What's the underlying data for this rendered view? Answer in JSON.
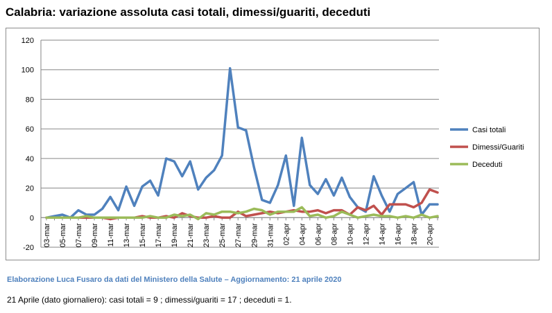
{
  "header": {
    "title": "Calabria: variazione assoluta casi totali, dimessi/guariti, deceduti"
  },
  "footer": {
    "credit": "Elaborazione  Luca Fusaro da dati del Ministero della Salute – Aggiornamento: 21 aprile 2020",
    "note": "21 Aprile (dato giornaliero): casi totali = 9 ; dimessi/guariti = 17 ; deceduti = 1."
  },
  "colors": {
    "casi": "#4f81bd",
    "dimessi": "#c0504d",
    "deceduti": "#9bbb59",
    "grid": "#868686"
  },
  "chart_data": {
    "type": "line",
    "title": "Calabria: variazione assoluta casi totali, dimessi/guariti, deceduti",
    "xlabel": "",
    "ylabel": "",
    "ylim": [
      -20,
      120
    ],
    "yticks": [
      -20,
      0,
      20,
      40,
      60,
      80,
      100,
      120
    ],
    "grid": "horizontal",
    "legend": "right",
    "categories": [
      "03-mar",
      "04-mar",
      "05-mar",
      "06-mar",
      "07-mar",
      "08-mar",
      "09-mar",
      "10-mar",
      "11-mar",
      "12-mar",
      "13-mar",
      "14-mar",
      "15-mar",
      "16-mar",
      "17-mar",
      "18-mar",
      "19-mar",
      "20-mar",
      "21-mar",
      "22-mar",
      "23-mar",
      "24-mar",
      "25-mar",
      "26-mar",
      "27-mar",
      "28-mar",
      "29-mar",
      "30-mar",
      "31-mar",
      "01-apr",
      "02-apr",
      "03-apr",
      "04-apr",
      "05-apr",
      "06-apr",
      "07-apr",
      "08-apr",
      "09-apr",
      "10-apr",
      "11-apr",
      "12-apr",
      "13-apr",
      "14-apr",
      "15-apr",
      "16-apr",
      "17-apr",
      "18-apr",
      "19-apr",
      "20-apr",
      "21-apr"
    ],
    "tick_labels": [
      "03-mar",
      "05-mar",
      "07-mar",
      "09-mar",
      "11-mar",
      "13-mar",
      "15-mar",
      "17-mar",
      "19-mar",
      "21-mar",
      "23-mar",
      "25-mar",
      "27-mar",
      "29-mar",
      "31-mar",
      "02-apr",
      "04-apr",
      "06-apr",
      "08-apr",
      "10-apr",
      "12-apr",
      "14-apr",
      "16-apr",
      "18-apr",
      "20-apr"
    ],
    "series": [
      {
        "name": "Casi totali",
        "color": "#4f81bd",
        "values": [
          0,
          1,
          2,
          0,
          5,
          2,
          2,
          6,
          14,
          5,
          21,
          8,
          21,
          25,
          15,
          40,
          38,
          28,
          38,
          19,
          27,
          32,
          42,
          101,
          61,
          59,
          34,
          12,
          10,
          22,
          42,
          8,
          54,
          22,
          16,
          26,
          15,
          27,
          14,
          7,
          4,
          28,
          15,
          4,
          16,
          20,
          24,
          2,
          9,
          9
        ]
      },
      {
        "name": "Dimessi/Guariti",
        "color": "#c0504d",
        "values": [
          0,
          0,
          0,
          0,
          0,
          0,
          0,
          0,
          -1,
          0,
          0,
          0,
          1,
          0,
          0,
          1,
          0,
          3,
          1,
          0,
          0,
          1,
          0,
          0,
          4,
          1,
          2,
          3,
          4,
          3,
          4,
          5,
          4,
          4,
          5,
          3,
          5,
          5,
          2,
          7,
          5,
          8,
          2,
          9,
          9,
          9,
          7,
          10,
          19,
          17
        ]
      },
      {
        "name": "Deceduti",
        "color": "#9bbb59",
        "values": [
          0,
          0,
          0,
          0,
          0,
          1,
          0,
          0,
          0,
          0,
          0,
          0,
          0,
          1,
          0,
          0,
          2,
          1,
          2,
          -1,
          3,
          2,
          4,
          4,
          3,
          4,
          6,
          5,
          2,
          4,
          4,
          4,
          7,
          1,
          2,
          0,
          1,
          4,
          2,
          0,
          1,
          2,
          1,
          1,
          0,
          1,
          0,
          2,
          0,
          1
        ]
      }
    ]
  }
}
